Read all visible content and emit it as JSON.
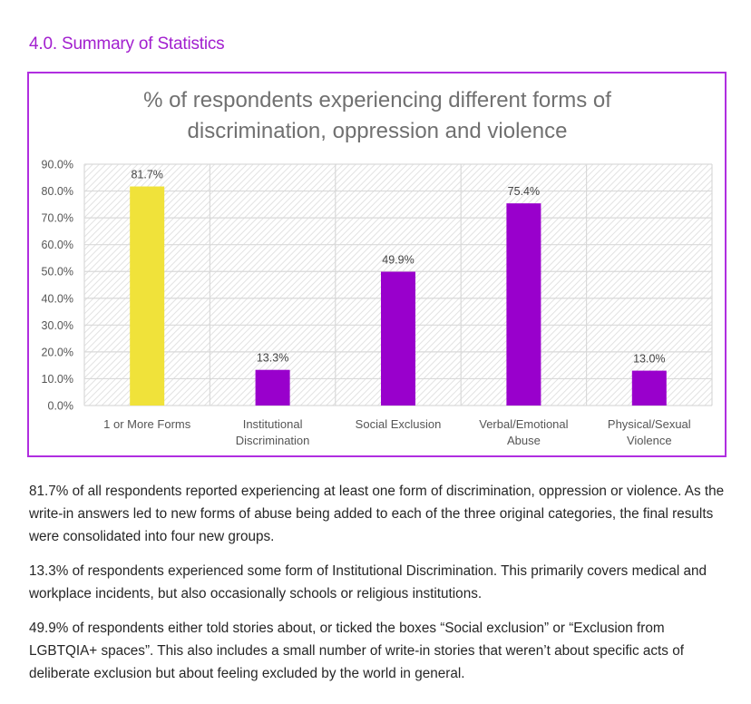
{
  "section": {
    "heading": "4.0. Summary of Statistics"
  },
  "colors": {
    "heading": "#a21fcf",
    "frame_border": "#b02ee0",
    "highlight_bar": "#f0e23a",
    "primary_bar": "#9900cc",
    "grid": "#d9d9d9",
    "hatch": "#e3e3e3"
  },
  "chart_data": {
    "type": "bar",
    "title_lines": [
      "% of respondents experiencing different forms of",
      "discrimination, oppression and violence"
    ],
    "categories": [
      [
        "1 or More Forms"
      ],
      [
        "Institutional",
        "Discrimination"
      ],
      [
        "Social Exclusion"
      ],
      [
        "Verbal/Emotional",
        "Abuse"
      ],
      [
        "Physical/Sexual",
        "Violence"
      ]
    ],
    "values": [
      81.7,
      13.3,
      49.9,
      75.4,
      13.0
    ],
    "data_labels": [
      "81.7%",
      "13.3%",
      "49.9%",
      "75.4%",
      "13.0%"
    ],
    "highlight_index": 0,
    "xlabel": "",
    "ylabel": "",
    "ylim": [
      0,
      90
    ],
    "yticks": [
      0,
      10,
      20,
      30,
      40,
      50,
      60,
      70,
      80,
      90
    ],
    "ytick_labels": [
      "0.0%",
      "10.0%",
      "20.0%",
      "30.0%",
      "40.0%",
      "50.0%",
      "60.0%",
      "70.0%",
      "80.0%",
      "90.0%"
    ],
    "grid": true,
    "legend": "none",
    "background": "diagonal-hatch"
  },
  "paragraphs": [
    "81.7% of all respondents reported experiencing at least one form of discrimination, oppression or violence. As the write-in answers led to new forms of abuse being added to each of the three original categories, the final results were consolidated into four new groups.",
    "13.3% of respondents experienced some form of Institutional Discrimination. This primarily covers medical and workplace incidents, but also occasionally schools or religious institutions.",
    "49.9% of respondents either told stories about, or ticked the boxes “Social exclusion” or “Exclusion from LGBTQIA+ spaces”. This also includes a small number of write-in stories that weren’t about specific acts of deliberate exclusion but about feeling excluded by the world in general."
  ]
}
